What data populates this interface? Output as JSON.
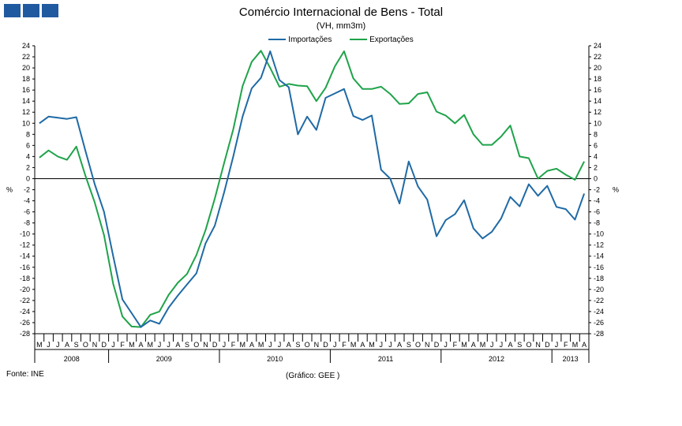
{
  "logo": {
    "color": "#1f5aa0"
  },
  "source": "Fonte: INE",
  "credit": "(Gráfico: GEE )",
  "chart_data": {
    "type": "line",
    "title": "Comércio Internacional de Bens - Total",
    "subtitle": "(VH, mm3m)",
    "ylabel_left": "%",
    "ylabel_right": "%",
    "ylim": [
      -28,
      24
    ],
    "yticks": [
      24,
      22,
      20,
      18,
      16,
      14,
      12,
      10,
      8,
      6,
      4,
      2,
      0,
      -2,
      -4,
      -6,
      -8,
      -10,
      -12,
      -14,
      -16,
      -18,
      -20,
      -22,
      -24,
      -26,
      -28
    ],
    "legend_position": "top-center",
    "grid": false,
    "months": [
      "M",
      "J",
      "J",
      "A",
      "S",
      "O",
      "N",
      "D",
      "J",
      "F",
      "M",
      "A",
      "M",
      "J",
      "J",
      "A",
      "S",
      "O",
      "N",
      "D",
      "J",
      "F",
      "M",
      "A",
      "M",
      "J",
      "J",
      "A",
      "S",
      "O",
      "N",
      "D",
      "J",
      "F",
      "M",
      "A",
      "M",
      "J",
      "J",
      "A",
      "S",
      "O",
      "N",
      "D",
      "J",
      "F",
      "M",
      "A",
      "M",
      "J",
      "J",
      "A",
      "S",
      "O",
      "N",
      "D",
      "J",
      "F",
      "M",
      "A"
    ],
    "years": [
      {
        "label": "2008",
        "start": 0,
        "count": 8
      },
      {
        "label": "2009",
        "start": 8,
        "count": 12
      },
      {
        "label": "2010",
        "start": 20,
        "count": 12
      },
      {
        "label": "2011",
        "start": 32,
        "count": 12
      },
      {
        "label": "2012",
        "start": 44,
        "count": 12
      },
      {
        "label": "2013",
        "start": 56,
        "count": 4
      }
    ],
    "series": [
      {
        "name": "Importações",
        "color": "#1f6aa5",
        "values": [
          10.0,
          11.2,
          11.0,
          10.8,
          11.1,
          5.0,
          -1.0,
          -6.0,
          -14.0,
          -21.8,
          -24.3,
          -26.8,
          -25.6,
          -26.2,
          -23.3,
          -21.1,
          -19.1,
          -17.1,
          -11.7,
          -8.5,
          -2.5,
          4.0,
          11.2,
          16.3,
          18.2,
          23.0,
          17.8,
          16.5,
          8.0,
          11.2,
          8.8,
          14.6,
          15.4,
          16.2,
          11.3,
          10.6,
          11.4,
          1.6,
          0.0,
          -4.5,
          3.1,
          -1.4,
          -3.8,
          -10.4,
          -7.5,
          -6.4,
          -3.9,
          -9.0,
          -10.8,
          -9.6,
          -7.2,
          -3.3,
          -5.0,
          -1.0,
          -3.1,
          -1.3,
          -5.1,
          -5.5,
          -7.4,
          -2.7
        ]
      },
      {
        "name": "Exportações",
        "color": "#1fa34a",
        "values": [
          3.8,
          5.1,
          4.0,
          3.4,
          5.8,
          0.5,
          -4.3,
          -10.2,
          -19.0,
          -24.9,
          -26.7,
          -26.8,
          -24.6,
          -24.0,
          -21.0,
          -18.8,
          -17.2,
          -13.8,
          -9.3,
          -3.6,
          2.8,
          8.9,
          16.7,
          21.1,
          23.1,
          20.0,
          16.6,
          17.1,
          16.8,
          16.7,
          14.0,
          16.4,
          20.3,
          23.0,
          18.1,
          16.2,
          16.2,
          16.6,
          15.3,
          13.5,
          13.6,
          15.3,
          15.6,
          12.1,
          11.4,
          10.0,
          11.5,
          8.0,
          6.1,
          6.1,
          7.6,
          9.6,
          4.0,
          3.7,
          0.0,
          1.4,
          1.8,
          0.7,
          -0.2,
          3.1
        ]
      }
    ]
  }
}
